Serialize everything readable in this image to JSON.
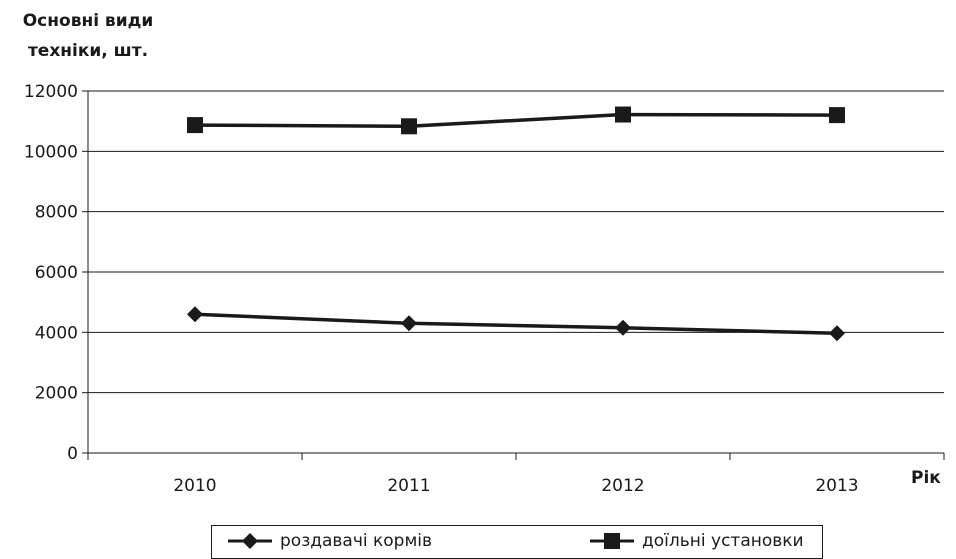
{
  "chart_data": {
    "type": "line",
    "ylabel_line1": "Основні види",
    "ylabel_line2": "техніки, шт.",
    "xlabel": "Рік",
    "categories": [
      "2010",
      "2011",
      "2012",
      "2013"
    ],
    "ylim": [
      0,
      12000
    ],
    "yticks": [
      0,
      2000,
      4000,
      6000,
      8000,
      10000,
      12000
    ],
    "ytick_labels": [
      "0",
      "2000",
      "4000",
      "6000",
      "8000",
      "10000",
      "12000"
    ],
    "grid": true,
    "legend_position": "bottom",
    "series": [
      {
        "name": "роздавачі кормів",
        "marker": "diamond",
        "values": [
          4600,
          4300,
          4150,
          3970
        ]
      },
      {
        "name": "доїльні установки",
        "marker": "square",
        "values": [
          10870,
          10830,
          11220,
          11200
        ]
      }
    ],
    "colors": {
      "line": "#1a1a1a",
      "grid": "#1a1a1a",
      "background": "#ffffff"
    }
  }
}
